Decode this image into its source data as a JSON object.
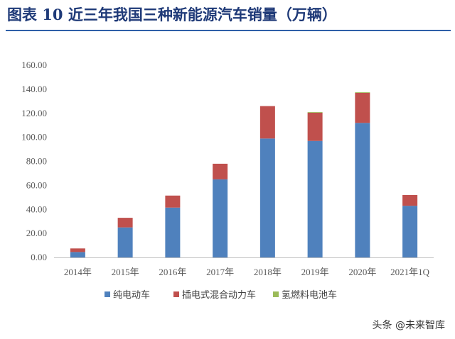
{
  "title": "图表 10 近三年我国三种新能源汽车销量（万辆）",
  "watermark": "头条 @未来智库",
  "colors": {
    "bev": "#4f81bd",
    "phev": "#c0504d",
    "fcev": "#9bbb59",
    "title": "#1f3a78"
  },
  "chart_data": {
    "type": "bar",
    "stacked": true,
    "categories": [
      "2014年",
      "2015年",
      "2016年",
      "2017年",
      "2018年",
      "2019年",
      "2020年",
      "2021年1Q"
    ],
    "series": [
      {
        "name": "纯电动车",
        "values": [
          4.5,
          25.0,
          41.5,
          65.0,
          99.0,
          97.0,
          112.0,
          43.0
        ]
      },
      {
        "name": "插电式混合动力车",
        "values": [
          3.0,
          8.0,
          10.0,
          13.0,
          27.0,
          23.5,
          25.0,
          9.0
        ]
      },
      {
        "name": "氢燃料电池车",
        "values": [
          0.0,
          0.0,
          0.0,
          0.0,
          0.0,
          0.5,
          0.5,
          0.0
        ]
      }
    ],
    "yticks": [
      "0.00",
      "20.00",
      "40.00",
      "60.00",
      "80.00",
      "100.00",
      "120.00",
      "140.00",
      "160.00"
    ],
    "ylim": [
      0,
      160
    ],
    "grid": false,
    "legend": "bottom"
  }
}
